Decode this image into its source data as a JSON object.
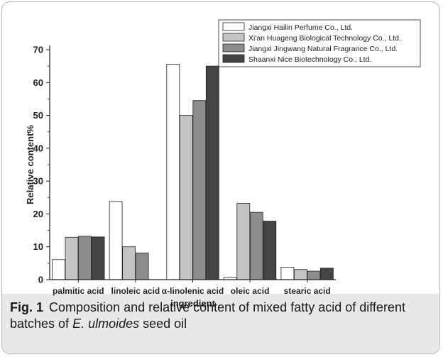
{
  "chart_data": {
    "type": "bar",
    "categories": [
      "palmitic acid",
      "linoleic acid",
      "α-linolenic acid",
      "oleic acid",
      "stearic acid"
    ],
    "series": [
      {
        "name": "Jiangxi Hailin Perfume Co., Ltd.",
        "color": "#ffffff",
        "values": [
          6.1,
          23.8,
          65.6,
          0.7,
          3.8
        ]
      },
      {
        "name": "Xi'an Huageng Biological Technology Co., Ltd.",
        "color": "#c4c4c4",
        "values": [
          12.9,
          10.0,
          50.0,
          23.2,
          3.1
        ]
      },
      {
        "name": "Jiangxi Jingwang Natural Fragrance Co., Ltd.",
        "color": "#8c8c8c",
        "values": [
          13.2,
          8.1,
          54.5,
          20.5,
          2.6
        ]
      },
      {
        "name": "Shaanxi Nice Biotechnology Co., Ltd.",
        "color": "#444444",
        "values": [
          13.0,
          0,
          65.0,
          17.8,
          3.5
        ]
      }
    ],
    "xlabel": "ingredient",
    "ylabel": "Relative content%",
    "ylim": [
      0,
      70
    ],
    "yticks": [
      0,
      10,
      20,
      30,
      40,
      50,
      60,
      70
    ],
    "grid": false,
    "legend_position": "top-right"
  },
  "caption": {
    "label": "Fig. 1",
    "text_before": "Composition and relative content of mixed fatty acid of different batches of ",
    "species": "E. ulmoides",
    "text_after": " seed oil"
  }
}
